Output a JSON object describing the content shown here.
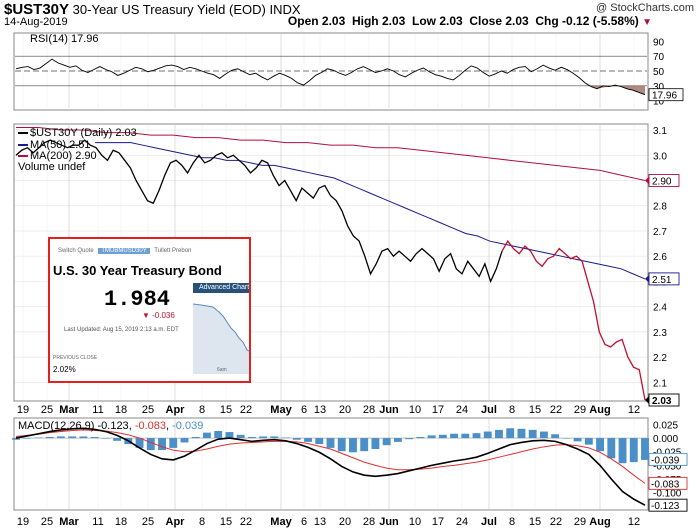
{
  "header": {
    "symbol": "$UST30Y",
    "name": "30-Year US Treasury Yield (EOD)",
    "exchange": "INDX",
    "copyright": "@ StockCharts.com",
    "date": "14-Aug-2019",
    "open": "Open 2.03",
    "high": "High 2.03",
    "low": "Low 2.03",
    "close": "Close 2.03",
    "chg": "Chg -0.12 (-5.58%)",
    "chg_arrow": "▼"
  },
  "colors": {
    "price": "#000000",
    "ma50": "#1a1a8c",
    "ma200": "#b01040",
    "rsi": "#000000",
    "rsi_fill": "#8b5a4a",
    "macd": "#000000",
    "signal": "#e03030",
    "hist": "#4a8fc8"
  },
  "inset": {
    "tab1": "Switch Quote",
    "tab2": "TMUBMUSD30Y",
    "tab3": "Tullett Prebon",
    "title": "U.S. 30 Year Treasury Bond",
    "price": "1.984",
    "change": "▼ -0.036",
    "updated": "Last Updated: Aug 15, 2019 2:13 a.m. EDT",
    "advanced": "Advanced Chart",
    "prev_label": "PREVIOUS CLOSE",
    "prev_value": "2.02%",
    "sparkline_time": "6am"
  },
  "chart_data": [
    {
      "type": "line",
      "panel": "RSI",
      "legend": "RSI(14) 17.96",
      "last_value_label": "17.96",
      "y_ticks": [
        "90",
        "70",
        "50",
        "30",
        "10"
      ],
      "ylim": [
        0,
        100
      ],
      "reference_lines": [
        70,
        50,
        30
      ],
      "series": [
        {
          "name": "RSI(14)",
          "values": [
            53,
            55,
            56,
            52,
            54,
            60,
            66,
            61,
            58,
            55,
            57,
            51,
            48,
            52,
            56,
            52,
            49,
            44,
            47,
            51,
            55,
            53,
            49,
            51,
            54,
            57,
            58,
            56,
            52,
            55,
            53,
            50,
            47,
            45,
            40,
            46,
            51,
            53,
            49,
            45,
            47,
            42,
            38,
            43,
            47,
            44,
            40,
            34,
            31,
            37,
            44,
            48,
            53,
            51,
            47,
            44,
            48,
            53,
            56,
            52,
            48,
            50,
            53,
            50,
            45,
            42,
            47,
            51,
            54,
            49,
            45,
            43,
            40,
            38,
            44,
            51,
            57,
            54,
            48,
            43,
            46,
            50,
            47,
            52,
            55,
            56,
            49,
            53,
            58,
            54,
            51,
            55,
            52,
            47,
            41,
            34,
            29,
            26,
            30,
            29,
            31,
            29,
            26,
            24,
            21,
            17.96
          ]
        }
      ]
    },
    {
      "type": "line",
      "panel": "Price",
      "legend": [
        "$UST30Y (Daily) 2.03",
        "MA(50) 2.51",
        "MA(200) 2.90",
        "Volume undef"
      ],
      "y_ticks": [
        "3.1",
        "3.0",
        "2.9",
        "2.8",
        "2.7",
        "2.6",
        "2.5",
        "2.4",
        "2.3",
        "2.2",
        "2.1"
      ],
      "ylim": [
        2.03,
        3.12
      ],
      "last_value_labels": {
        "ma200": "2.90",
        "ma50": "2.51",
        "price": "2.03"
      },
      "series": [
        {
          "name": "$UST30Y (Daily)",
          "values": [
            3.0,
            3.02,
            3.03,
            3.01,
            3.03,
            3.05,
            3.06,
            3.05,
            3.04,
            3.03,
            3.04,
            3.04,
            3.06,
            3.04,
            3.03,
            3.0,
            2.98,
            3.02,
            3.01,
            2.98,
            2.95,
            2.9,
            2.86,
            2.82,
            2.81,
            2.86,
            2.92,
            2.97,
            2.98,
            2.96,
            2.93,
            2.97,
            3.0,
            2.97,
            2.98,
            3.0,
            3.01,
            2.99,
            3.0,
            2.98,
            2.96,
            2.93,
            2.95,
            2.98,
            2.97,
            2.92,
            2.88,
            2.9,
            2.86,
            2.82,
            2.87,
            2.85,
            2.83,
            2.87,
            2.88,
            2.84,
            2.82,
            2.78,
            2.72,
            2.68,
            2.66,
            2.6,
            2.53,
            2.57,
            2.62,
            2.63,
            2.6,
            2.62,
            2.6,
            2.58,
            2.61,
            2.63,
            2.61,
            2.59,
            2.54,
            2.59,
            2.61,
            2.55,
            2.53,
            2.58,
            2.55,
            2.52,
            2.57,
            2.5,
            2.55,
            2.62,
            2.66,
            2.63,
            2.61,
            2.64,
            2.62,
            2.58,
            2.56,
            2.59,
            2.6,
            2.63,
            2.61,
            2.59,
            2.6,
            2.58,
            2.5,
            2.42,
            2.3,
            2.25,
            2.24,
            2.26,
            2.27,
            2.2,
            2.16,
            2.15,
            2.03
          ]
        },
        {
          "name": "MA(50)",
          "values": [
            3.05,
            3.05,
            3.05,
            3.05,
            3.04,
            3.03,
            3.02,
            3.01,
            3.0,
            2.99,
            2.99,
            2.98,
            2.98,
            2.97,
            2.96,
            2.96,
            2.95,
            2.94,
            2.93,
            2.92,
            2.91,
            2.89,
            2.87,
            2.85,
            2.83,
            2.81,
            2.79,
            2.77,
            2.75,
            2.73,
            2.71,
            2.69,
            2.68,
            2.66,
            2.65,
            2.64,
            2.63,
            2.62,
            2.61,
            2.6,
            2.59,
            2.58,
            2.57,
            2.56,
            2.55,
            2.53,
            2.51
          ]
        },
        {
          "name": "MA(200)",
          "values": [
            3.11,
            3.11,
            3.1,
            3.1,
            3.09,
            3.09,
            3.08,
            3.08,
            3.07,
            3.07,
            3.06,
            3.06,
            3.05,
            3.05,
            3.04,
            3.04,
            3.03,
            3.03,
            3.02,
            3.01,
            3.0,
            2.99,
            2.98,
            2.97,
            2.96,
            2.95,
            2.94,
            2.92,
            2.9
          ]
        }
      ]
    },
    {
      "type": "line",
      "panel": "MACD",
      "legend": {
        "prefix": "MACD(12,26,9)",
        "macd": "-0.123",
        "signal": "-0.083",
        "hist": "-0.039"
      },
      "y_ticks": [
        "0.025",
        "0.000",
        "-0.025",
        "-0.050",
        "-0.075",
        "-0.100"
      ],
      "ylim": [
        -0.13,
        0.035
      ],
      "last_value_labels": {
        "hist": "-0.039",
        "signal": "-0.083",
        "macd": "-0.123"
      },
      "series": [
        {
          "name": "MACD",
          "values": [
            0.0,
            0.004,
            0.008,
            0.012,
            0.015,
            0.017,
            0.018,
            0.016,
            0.012,
            0.005,
            -0.005,
            -0.018,
            -0.03,
            -0.038,
            -0.04,
            -0.033,
            -0.022,
            -0.01,
            -0.002,
            0.0,
            -0.003,
            -0.006,
            -0.004,
            -0.003,
            -0.005,
            -0.01,
            -0.017,
            -0.026,
            -0.038,
            -0.052,
            -0.062,
            -0.068,
            -0.07,
            -0.068,
            -0.065,
            -0.06,
            -0.055,
            -0.05,
            -0.046,
            -0.042,
            -0.039,
            -0.035,
            -0.028,
            -0.02,
            -0.012,
            -0.008,
            -0.005,
            -0.004,
            -0.006,
            -0.012,
            -0.02,
            -0.03,
            -0.05,
            -0.075,
            -0.098,
            -0.112,
            -0.123
          ]
        },
        {
          "name": "Signal",
          "values": [
            0.003,
            0.005,
            0.007,
            0.01,
            0.012,
            0.014,
            0.015,
            0.014,
            0.013,
            0.01,
            0.006,
            0.0,
            -0.008,
            -0.016,
            -0.022,
            -0.025,
            -0.024,
            -0.02,
            -0.015,
            -0.011,
            -0.009,
            -0.008,
            -0.007,
            -0.006,
            -0.006,
            -0.007,
            -0.01,
            -0.015,
            -0.02,
            -0.028,
            -0.036,
            -0.044,
            -0.05,
            -0.055,
            -0.058,
            -0.058,
            -0.057,
            -0.055,
            -0.052,
            -0.05,
            -0.047,
            -0.044,
            -0.04,
            -0.035,
            -0.03,
            -0.025,
            -0.02,
            -0.016,
            -0.013,
            -0.012,
            -0.014,
            -0.018,
            -0.026,
            -0.038,
            -0.052,
            -0.068,
            -0.083
          ]
        }
      ]
    }
  ],
  "x_axis": {
    "labels": [
      "19",
      "25",
      "Mar",
      "11",
      "18",
      "25",
      "Apr",
      "8",
      "15",
      "22",
      "May",
      "6",
      "13",
      "20",
      "28",
      "Jun",
      "10",
      "17",
      "24",
      "Jul",
      "8",
      "15",
      "22",
      "29",
      "Aug",
      "12"
    ],
    "bold": [
      "Mar",
      "Apr",
      "May",
      "Jun",
      "Jul",
      "Aug"
    ]
  }
}
